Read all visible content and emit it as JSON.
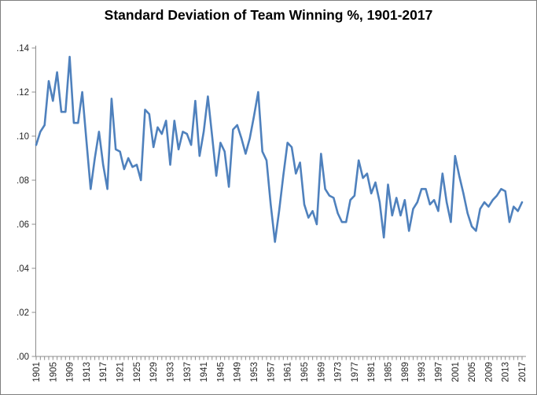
{
  "frame": {
    "background": "#FFFFFF",
    "border_color": "#7F7F7F"
  },
  "chart_data": {
    "type": "line",
    "title": "Standard Deviation of Team Winning %, 1901-2017",
    "xlabel": "",
    "ylabel": "",
    "grid": "off",
    "legend": "none",
    "line_color": "#4F81BD",
    "axis_color": "#8C8C8C",
    "tick_text_color": "#262626",
    "x_start": 1901,
    "x_end": 2017,
    "ylim": [
      0,
      0.14
    ],
    "y_tick_values": [
      0.0,
      0.02,
      0.04,
      0.06,
      0.08,
      0.1,
      0.12,
      0.14
    ],
    "y_tick_labels": [
      ".00",
      ".02",
      ".04",
      ".06",
      ".08",
      ".10",
      ".12",
      ".14"
    ],
    "x_tick_label_every_years": 4,
    "x_tick_labels": [
      "1901",
      "1905",
      "1909",
      "1913",
      "1917",
      "1921",
      "1925",
      "1929",
      "1933",
      "1937",
      "1941",
      "1945",
      "1949",
      "1953",
      "1957",
      "1961",
      "1965",
      "1969",
      "1973",
      "1977",
      "1981",
      "1985",
      "1989",
      "1993",
      "1997",
      "2001",
      "2005",
      "2009",
      "2013",
      "2017"
    ],
    "years": [
      1901,
      1902,
      1903,
      1904,
      1905,
      1906,
      1907,
      1908,
      1909,
      1910,
      1911,
      1912,
      1913,
      1914,
      1915,
      1916,
      1917,
      1918,
      1919,
      1920,
      1921,
      1922,
      1923,
      1924,
      1925,
      1926,
      1927,
      1928,
      1929,
      1930,
      1931,
      1932,
      1933,
      1934,
      1935,
      1936,
      1937,
      1938,
      1939,
      1940,
      1941,
      1942,
      1943,
      1944,
      1945,
      1946,
      1947,
      1948,
      1949,
      1950,
      1951,
      1952,
      1953,
      1954,
      1955,
      1956,
      1957,
      1958,
      1959,
      1960,
      1961,
      1962,
      1963,
      1964,
      1965,
      1966,
      1967,
      1968,
      1969,
      1970,
      1971,
      1972,
      1973,
      1974,
      1975,
      1976,
      1977,
      1978,
      1979,
      1980,
      1981,
      1982,
      1983,
      1984,
      1985,
      1986,
      1987,
      1988,
      1989,
      1990,
      1991,
      1992,
      1993,
      1994,
      1995,
      1996,
      1997,
      1998,
      1999,
      2000,
      2001,
      2002,
      2003,
      2004,
      2005,
      2006,
      2007,
      2008,
      2009,
      2010,
      2011,
      2012,
      2013,
      2014,
      2015,
      2016,
      2017
    ],
    "values": [
      0.096,
      0.102,
      0.105,
      0.125,
      0.116,
      0.129,
      0.111,
      0.111,
      0.136,
      0.106,
      0.106,
      0.12,
      0.098,
      0.076,
      0.09,
      0.102,
      0.087,
      0.076,
      0.117,
      0.094,
      0.093,
      0.085,
      0.09,
      0.086,
      0.087,
      0.08,
      0.112,
      0.11,
      0.095,
      0.104,
      0.101,
      0.107,
      0.087,
      0.107,
      0.094,
      0.102,
      0.101,
      0.096,
      0.116,
      0.091,
      0.102,
      0.118,
      0.1,
      0.082,
      0.097,
      0.093,
      0.077,
      0.103,
      0.105,
      0.099,
      0.092,
      0.099,
      0.109,
      0.12,
      0.093,
      0.089,
      0.069,
      0.052,
      0.066,
      0.082,
      0.097,
      0.095,
      0.083,
      0.088,
      0.069,
      0.063,
      0.066,
      0.06,
      0.092,
      0.076,
      0.073,
      0.072,
      0.065,
      0.061,
      0.061,
      0.071,
      0.073,
      0.089,
      0.081,
      0.083,
      0.074,
      0.079,
      0.07,
      0.054,
      0.078,
      0.064,
      0.072,
      0.064,
      0.071,
      0.057,
      0.067,
      0.07,
      0.076,
      0.076,
      0.069,
      0.071,
      0.066,
      0.083,
      0.07,
      0.061,
      0.091,
      0.082,
      0.074,
      0.065,
      0.059,
      0.057,
      0.067,
      0.07,
      0.068,
      0.071,
      0.073,
      0.076,
      0.075,
      0.061,
      0.068,
      0.066,
      0.07
    ]
  }
}
